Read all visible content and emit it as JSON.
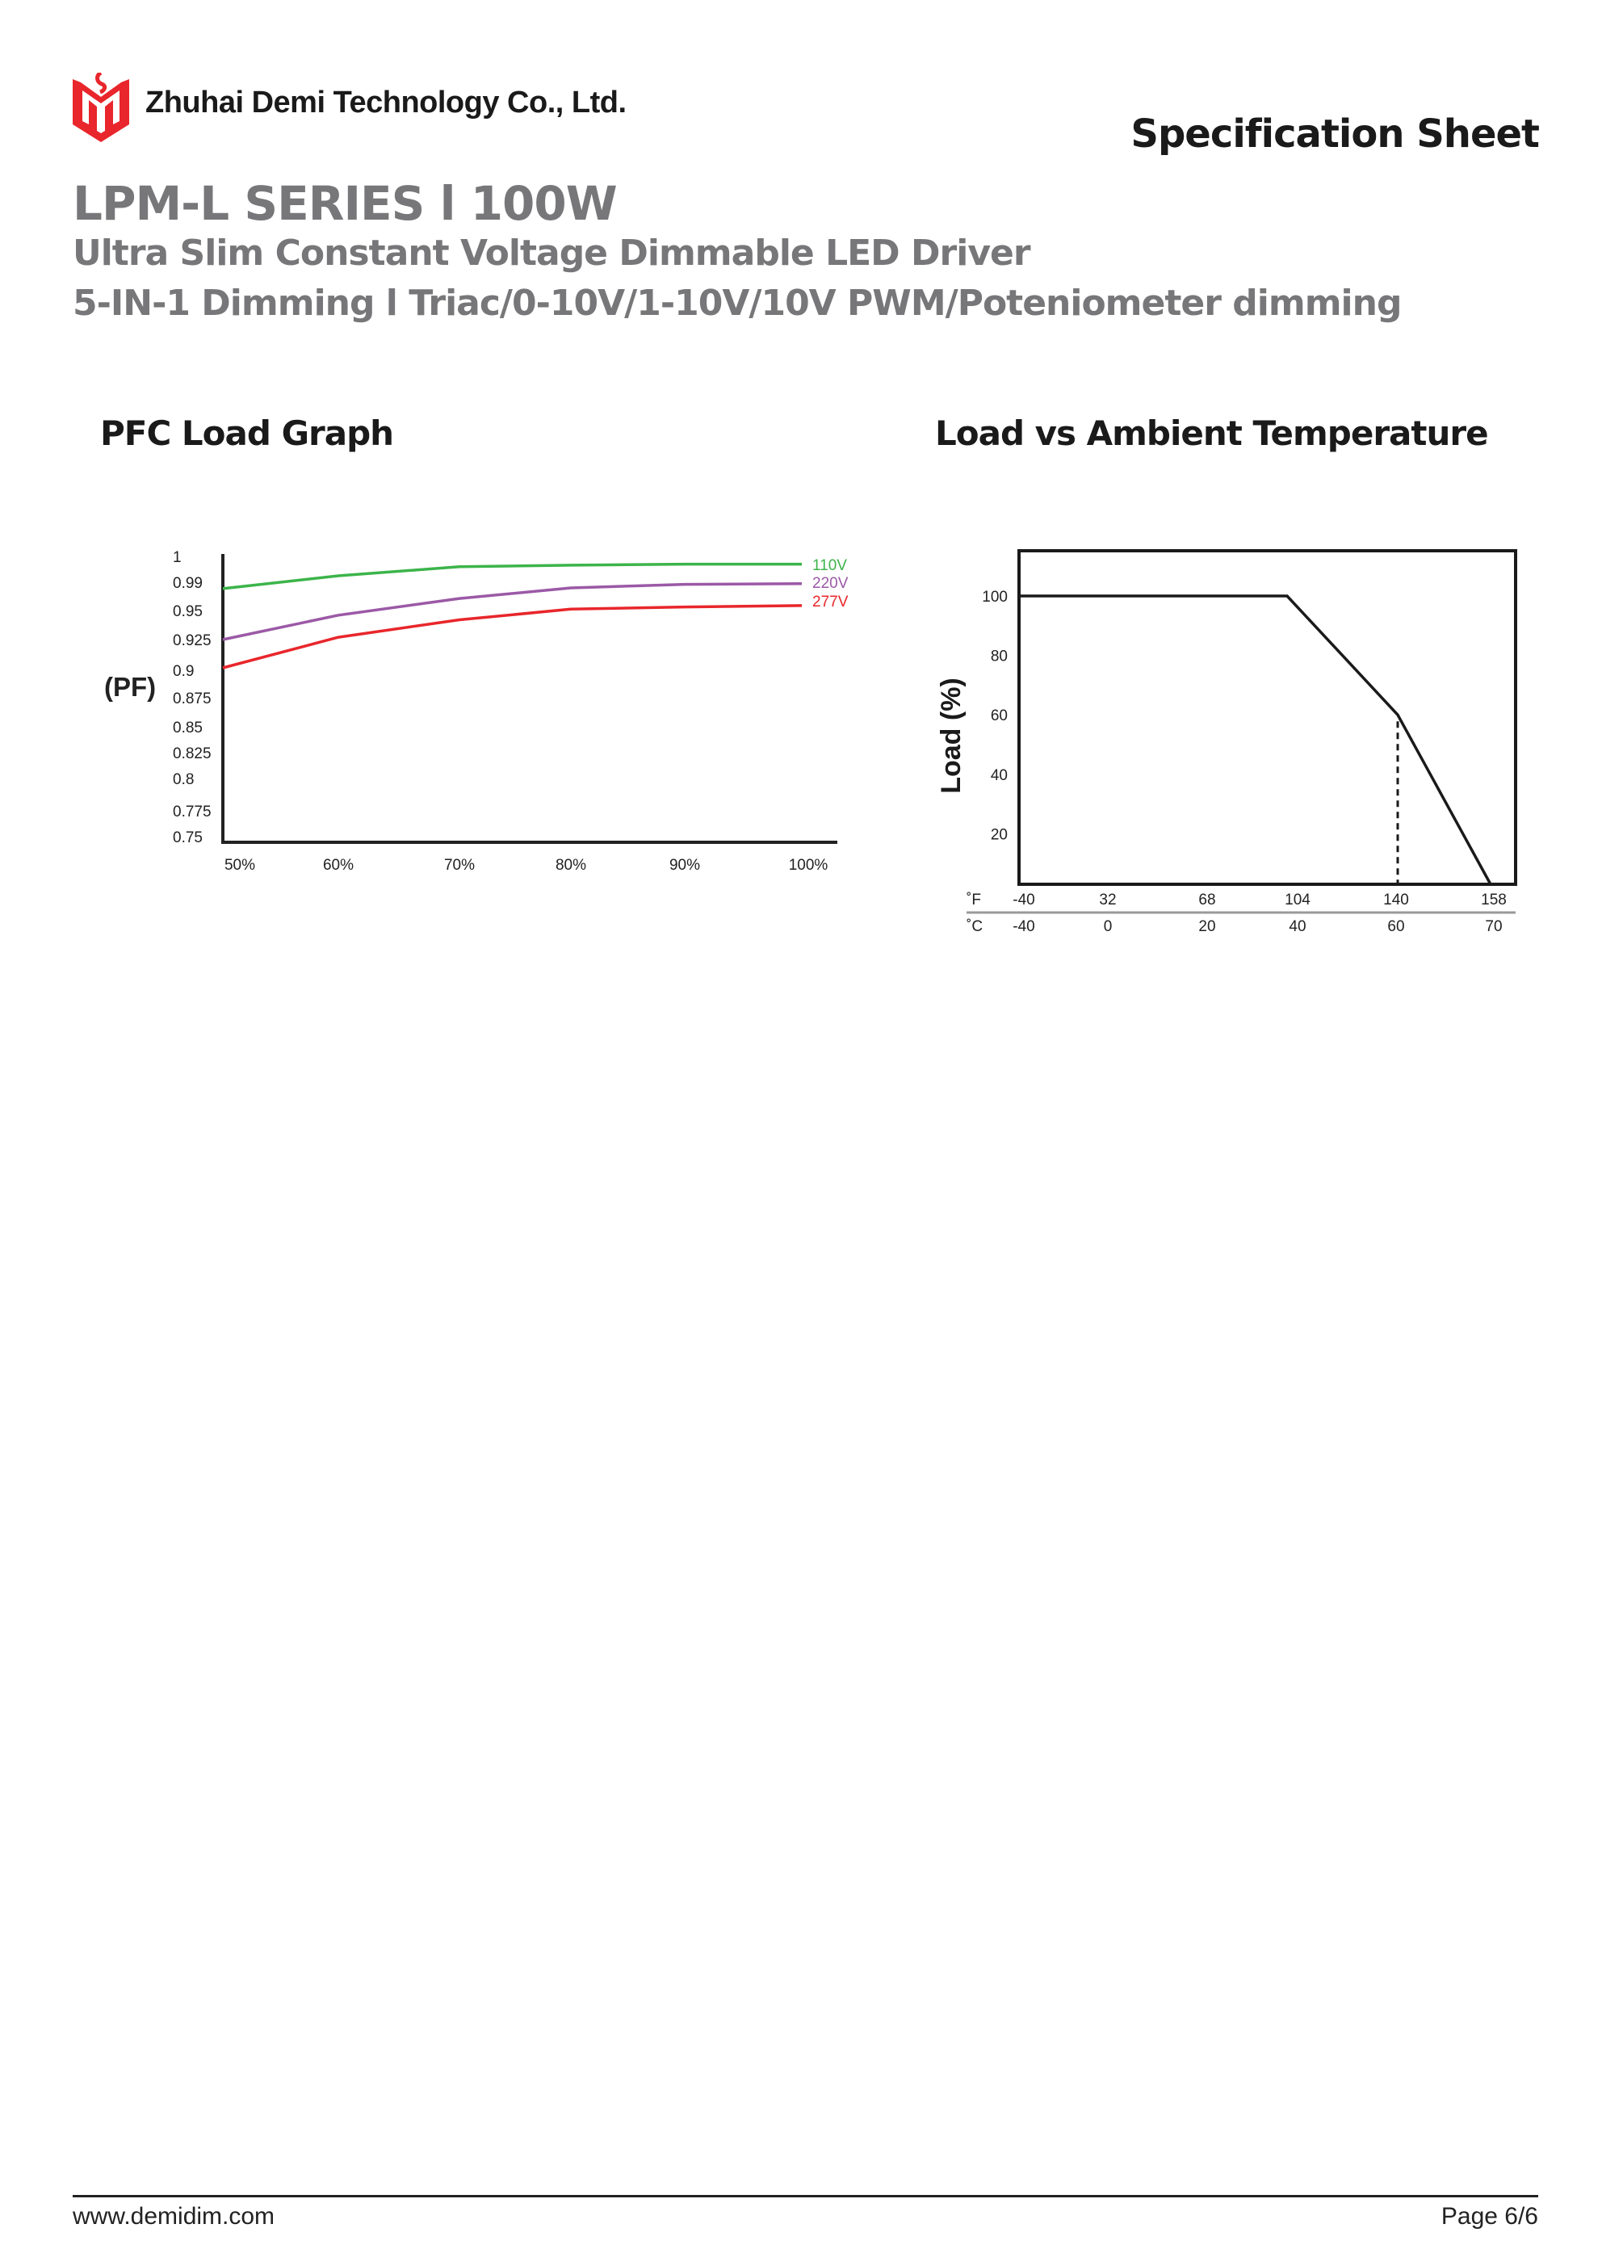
{
  "header": {
    "company": "Zhuhai Demi Technology Co., Ltd.",
    "doc_type": "Specification Sheet",
    "series": "LPM-L SERIES l 100W",
    "subtitle": "Ultra Slim Constant Voltage Dimmable LED Driver",
    "subtitle2": "5-IN-1 Dimming l  Triac/0-10V/1-10V/10V PWM/Poteniometer dimming",
    "brand_color": "#e8262b"
  },
  "chart_data": [
    {
      "type": "line",
      "title": "PFC Load Graph",
      "ylabel": "(PF)",
      "xlabel": "",
      "x": [
        50,
        60,
        70,
        80,
        90,
        100
      ],
      "x_tick_labels": [
        "50%",
        "60%",
        "70%",
        "80%",
        "90%",
        "100%"
      ],
      "y_ticks": [
        1,
        0.99,
        0.95,
        0.925,
        0.9,
        0.875,
        0.85,
        0.825,
        0.8,
        0.775,
        0.75
      ],
      "y_tick_labels": [
        "1",
        "0.99",
        "0.95",
        "0.925",
        "0.9",
        "0.875",
        "0.85",
        "0.825",
        "0.8",
        "0.775",
        "0.75"
      ],
      "ylim": [
        0.75,
        1
      ],
      "grid": false,
      "series": [
        {
          "name": "110V",
          "color": "#3cb44a",
          "values": [
            0.981,
            0.9925,
            0.996,
            0.9966,
            0.997,
            0.997
          ]
        },
        {
          "name": "220V",
          "color": "#9b59a6",
          "values": [
            0.925,
            0.946,
            0.967,
            0.982,
            0.987,
            0.988
          ]
        },
        {
          "name": "277V",
          "color": "#e8262b",
          "values": [
            0.902,
            0.927,
            0.942,
            0.952,
            0.955,
            0.957
          ]
        }
      ],
      "legend": "right-inline"
    },
    {
      "type": "line",
      "title": "Load vs Ambient Temperature",
      "ylabel": "Load (%)",
      "y_tick_labels": [
        "100",
        "80",
        "60",
        "40",
        "20"
      ],
      "y_ticks": [
        100,
        80,
        60,
        40,
        20
      ],
      "x_celsius_ticks": [
        -40,
        0,
        20,
        40,
        60,
        70
      ],
      "x_celsius_labels": [
        "-40",
        "0",
        "20",
        "40",
        "60",
        "70"
      ],
      "x_fahrenheit_labels": [
        "-40",
        "32",
        "68",
        "104",
        "140",
        "158"
      ],
      "unit_f": "˚F",
      "unit_c": "˚C",
      "series": [
        {
          "name": "derating",
          "color": "#1a1a1a",
          "x": [
            -40,
            40,
            60,
            70
          ],
          "values": [
            100,
            100,
            60,
            0
          ]
        }
      ],
      "reference_line": {
        "x": 60,
        "style": "dashed"
      },
      "grid": false
    }
  ],
  "footer": {
    "url": "www.demidim.com",
    "page": "Page 6/6"
  }
}
